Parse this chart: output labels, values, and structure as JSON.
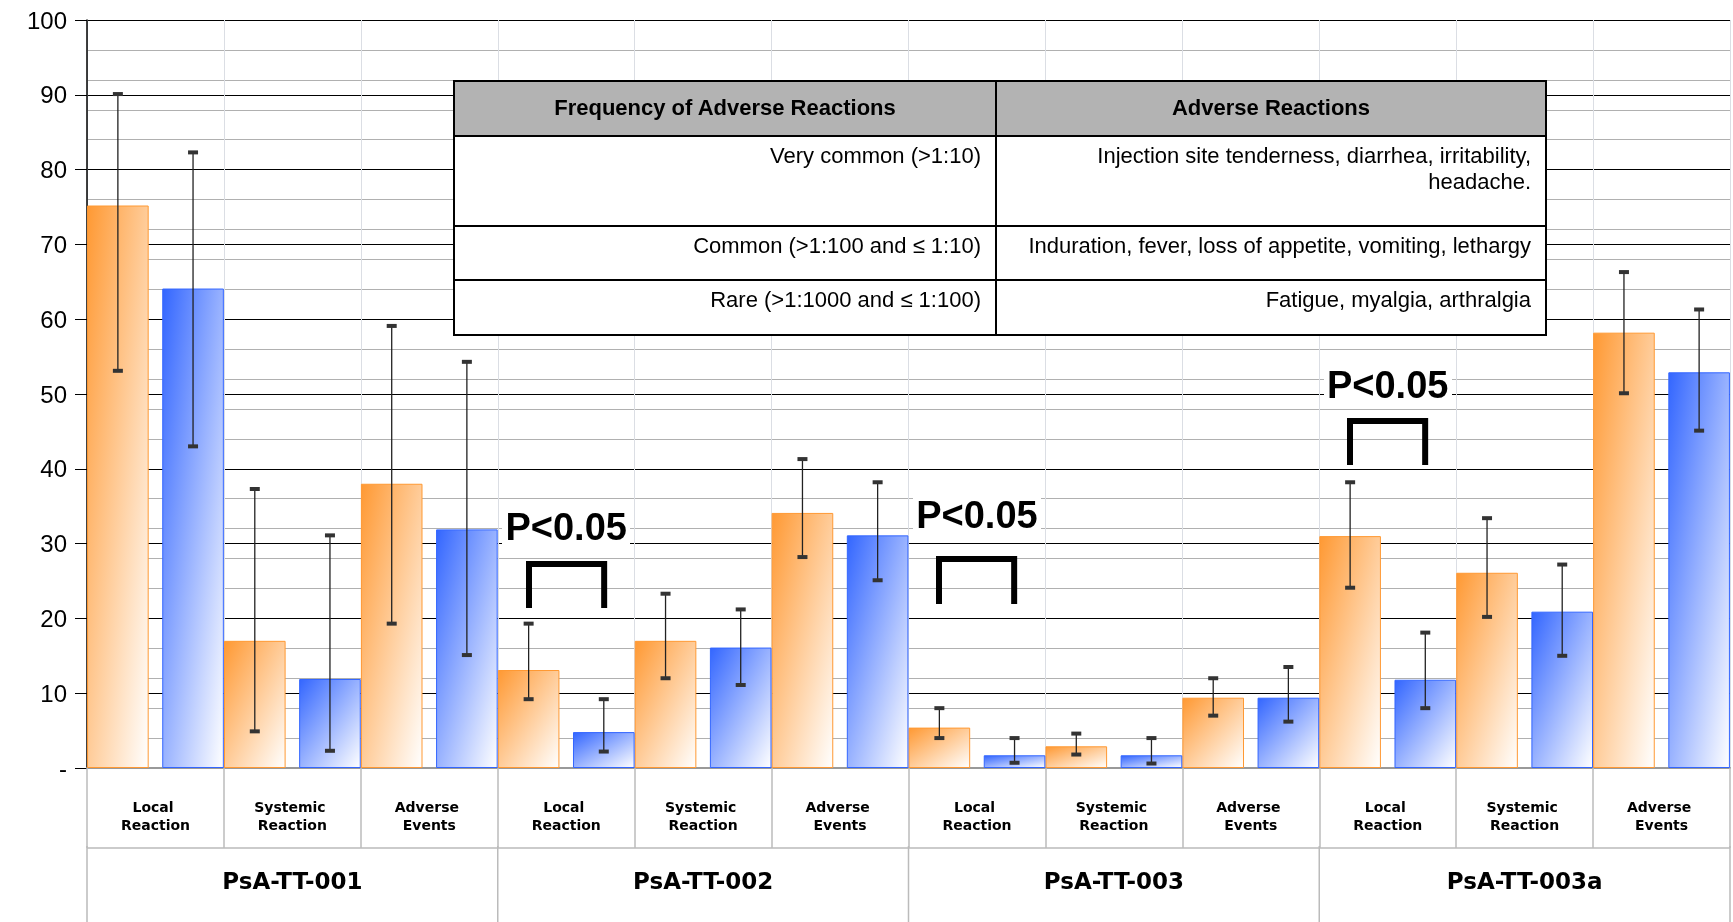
{
  "chart_data": {
    "type": "bar",
    "categories": [
      "Local Reaction",
      "Systemic Reaction",
      "Adverse Events",
      "Local Reaction",
      "Systemic Reaction",
      "Adverse Events",
      "Local Reaction",
      "Systemic Reaction",
      "Adverse Events",
      "Local Reaction",
      "Systemic Reaction",
      "Adverse Events"
    ],
    "series": [
      {
        "color": "#ff9933",
        "values": [
          75.2,
          17.0,
          38.0,
          13.1,
          17.0,
          34.1,
          5.4,
          2.9,
          9.4,
          31.0,
          26.1,
          58.2
        ],
        "errors": [
          [
            53.1,
            90.1
          ],
          [
            4.9,
            37.3
          ],
          [
            19.3,
            59.1
          ],
          [
            9.2,
            19.3
          ],
          [
            12.0,
            23.3
          ],
          [
            28.2,
            41.3
          ],
          [
            4.0,
            8.0
          ],
          [
            1.8,
            4.6
          ],
          [
            7.0,
            12.0
          ],
          [
            24.1,
            38.2
          ],
          [
            20.2,
            33.4
          ],
          [
            50.1,
            66.3
          ]
        ]
      },
      {
        "color": "#3366ff",
        "values": [
          64.1,
          11.9,
          31.9,
          4.8,
          16.1,
          31.1,
          1.7,
          1.7,
          9.4,
          11.8,
          20.9,
          52.9
        ],
        "errors": [
          [
            43.0,
            82.3
          ],
          [
            2.3,
            31.1
          ],
          [
            15.1,
            54.3
          ],
          [
            2.2,
            9.2
          ],
          [
            11.1,
            21.2
          ],
          [
            25.1,
            38.2
          ],
          [
            0.7,
            4.0
          ],
          [
            0.6,
            4.0
          ],
          [
            6.2,
            13.5
          ],
          [
            8.0,
            18.1
          ],
          [
            15.0,
            27.2
          ],
          [
            45.1,
            61.3
          ]
        ]
      }
    ],
    "ylim": [
      0,
      100
    ],
    "yticks": [
      {
        "value": 0,
        "label": "-"
      },
      10,
      20,
      30,
      40,
      50,
      60,
      70,
      80,
      90,
      100
    ],
    "grid": true,
    "annotations": [
      "P<0.05",
      "P<0.05",
      "P<0.05",
      "Frequency of  Adverse Reactions",
      "Adverse Reactions",
      "Very common (>1:10)",
      "Injection site tenderness, diarrhea, irritability, headache.",
      "Common (>1:100 and ≤ 1:10)",
      "Induration, fever, loss of appetite, vomiting, lethargy",
      "Rare (>1:1000 and ≤ 1:100)",
      "Fatigue, myalgia, arthralgia",
      "PsA-TT-001",
      "PsA-TT-002",
      "PsA-TT-003",
      "PsA-TT-003a"
    ]
  }
}
